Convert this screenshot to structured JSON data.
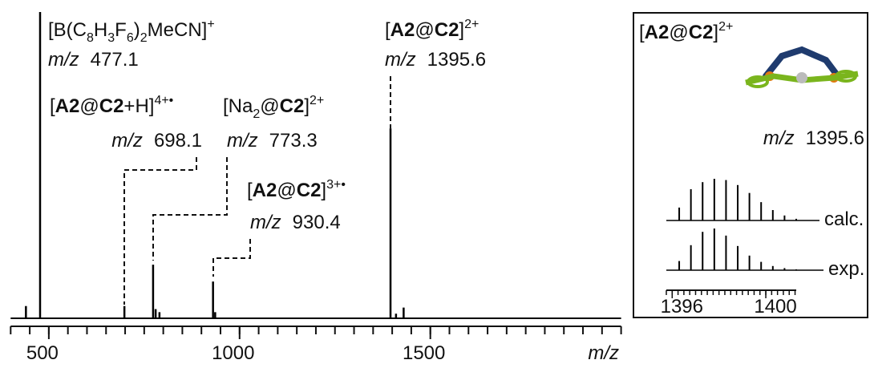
{
  "chart_data": {
    "type": "stick",
    "mz_label": "m/z",
    "x_label": "m/z",
    "xlim": [
      400,
      2000
    ],
    "ylim": [
      0,
      100
    ],
    "xticks": [
      500,
      1000,
      1500
    ],
    "xminor_ticks": [
      400,
      450,
      500,
      550,
      600,
      650,
      700,
      750,
      800,
      850,
      900,
      950,
      1000,
      1050,
      1100,
      1150,
      1200,
      1250,
      1300,
      1350,
      1400,
      1450,
      1500,
      1550,
      1600,
      1650,
      1700,
      1750,
      1800,
      1850,
      1900,
      1950,
      2000
    ],
    "color": "#000000",
    "peaks": [
      {
        "mz": 440,
        "intensity": 4
      },
      {
        "mz": 477.1,
        "intensity": 100,
        "label": [
          {
            "text": "[B(C"
          },
          {
            "text": "8",
            "style": "sub"
          },
          {
            "text": "H"
          },
          {
            "text": "3",
            "style": "sub"
          },
          {
            "text": "F"
          },
          {
            "text": "6",
            "style": "sub"
          },
          {
            "text": ")"
          },
          {
            "text": "2",
            "style": "sub"
          },
          {
            "text": "MeCN]"
          },
          {
            "text": "+",
            "style": "sup"
          }
        ]
      },
      {
        "mz": 698.1,
        "intensity": 4,
        "label": [
          {
            "text": "["
          },
          {
            "text": "A2",
            "style": "b"
          },
          {
            "text": "@"
          },
          {
            "text": "C2",
            "style": "b"
          },
          {
            "text": "+H]"
          },
          {
            "text": "4+•",
            "style": "sup"
          }
        ]
      },
      {
        "mz": 773.3,
        "intensity": 17.5,
        "label": [
          {
            "text": "[Na"
          },
          {
            "text": "2",
            "style": "sub"
          },
          {
            "text": "@"
          },
          {
            "text": "C2",
            "style": "b"
          },
          {
            "text": "]"
          },
          {
            "text": "2+",
            "style": "sup"
          }
        ]
      },
      {
        "mz": 780,
        "intensity": 3
      },
      {
        "mz": 790,
        "intensity": 2
      },
      {
        "mz": 930.4,
        "intensity": 12,
        "label": [
          {
            "text": "["
          },
          {
            "text": "A2",
            "style": "b"
          },
          {
            "text": "@"
          },
          {
            "text": "C2",
            "style": "b"
          },
          {
            "text": "]"
          },
          {
            "text": "3+•",
            "style": "sup"
          }
        ]
      },
      {
        "mz": 936,
        "intensity": 2
      },
      {
        "mz": 1395.6,
        "intensity": 62,
        "label": [
          {
            "text": "["
          },
          {
            "text": "A2",
            "style": "b"
          },
          {
            "text": "@"
          },
          {
            "text": "C2",
            "style": "b"
          },
          {
            "text": "]"
          },
          {
            "text": "2+",
            "style": "sup"
          }
        ]
      },
      {
        "mz": 1410,
        "intensity": 1.5
      },
      {
        "mz": 1430,
        "intensity": 3.5
      }
    ],
    "inset": {
      "xlim": [
        1395.75,
        1401.3
      ],
      "ylim": [
        0,
        100
      ],
      "xticks": [
        1396,
        1400
      ],
      "xminor_ticks": [
        1395.75,
        1396,
        1396.25,
        1396.5,
        1396.75,
        1397,
        1397.25,
        1397.5,
        1397.75,
        1398,
        1398.25,
        1398.5,
        1398.75,
        1399,
        1399.25,
        1399.5,
        1399.75,
        1400,
        1400.25,
        1400.5,
        1400.75,
        1401,
        1401.25
      ],
      "x": [
        1396.3,
        1396.8,
        1397.3,
        1397.8,
        1398.3,
        1398.8,
        1399.3,
        1399.8,
        1400.3,
        1400.8,
        1401.3
      ],
      "series": [
        {
          "name": "calc.",
          "color": "#000000",
          "values": [
            31,
            75,
            92,
            100,
            97,
            85,
            66,
            44,
            25,
            12,
            4
          ]
        },
        {
          "name": "exp.",
          "color": "#000000",
          "values": [
            22,
            60,
            92,
            100,
            83,
            58,
            35,
            20,
            10,
            5,
            2
          ]
        }
      ]
    }
  }
}
